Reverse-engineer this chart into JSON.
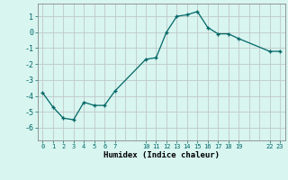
{
  "title": "",
  "xlabel": "Humidex (Indice chaleur)",
  "background_color": "#d8f5f0",
  "grid_color": "#c0c8c8",
  "line_color": "#006666",
  "marker_color": "#006666",
  "x": [
    0,
    1,
    2,
    3,
    4,
    5,
    6,
    7,
    10,
    11,
    12,
    13,
    14,
    15,
    16,
    17,
    18,
    19,
    22,
    23
  ],
  "y": [
    -3.8,
    -4.7,
    -5.4,
    -5.5,
    -4.4,
    -4.6,
    -4.6,
    -3.7,
    -1.7,
    -1.6,
    0.0,
    1.0,
    1.1,
    1.3,
    0.3,
    -0.1,
    -0.1,
    -0.4,
    -1.2,
    -1.2
  ],
  "xlim": [
    -0.5,
    23.5
  ],
  "ylim": [
    -6.8,
    1.8
  ],
  "yticks": [
    -6,
    -5,
    -4,
    -3,
    -2,
    -1,
    0,
    1
  ],
  "xticks": [
    0,
    1,
    2,
    3,
    4,
    5,
    6,
    7,
    10,
    11,
    12,
    13,
    14,
    15,
    16,
    17,
    18,
    19,
    22,
    23
  ],
  "grid_xticks": [
    0,
    1,
    2,
    3,
    4,
    5,
    6,
    7,
    8,
    9,
    10,
    11,
    12,
    13,
    14,
    15,
    16,
    17,
    18,
    19,
    20,
    21,
    22,
    23
  ],
  "figsize": [
    3.2,
    2.0
  ],
  "dpi": 100
}
